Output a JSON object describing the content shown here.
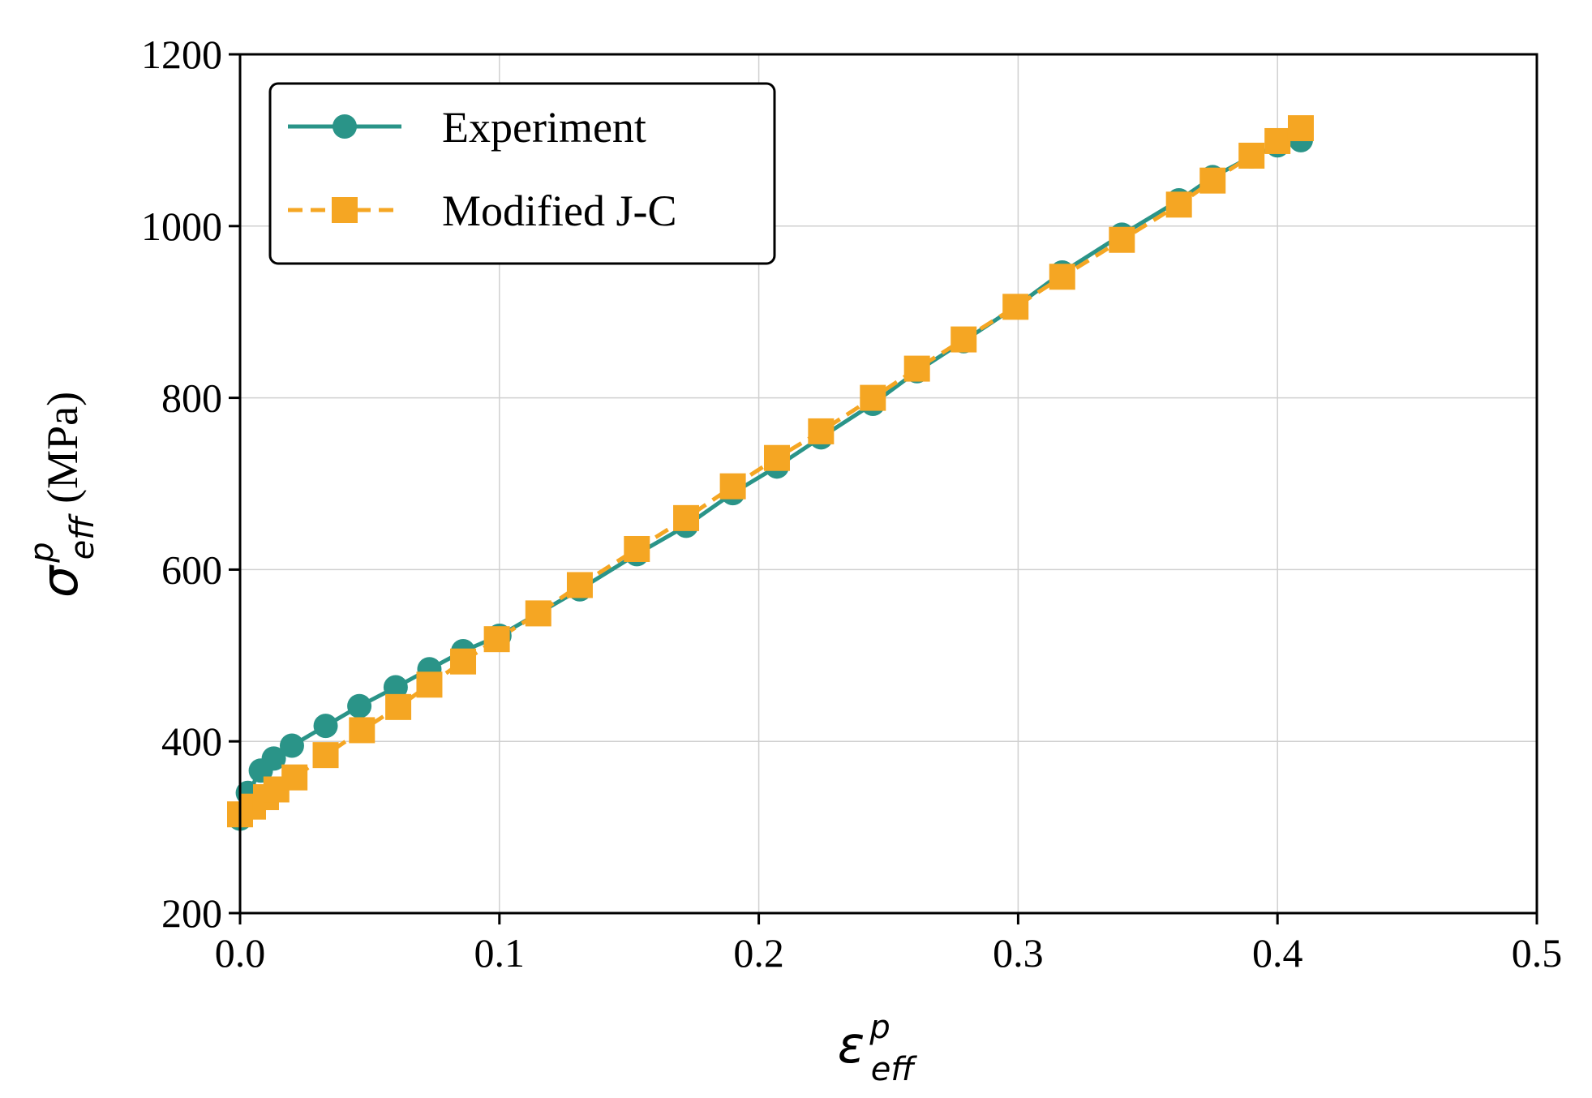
{
  "chart_data": {
    "type": "line",
    "title": "",
    "xlabel": "ε_eff^p",
    "ylabel": "σ_eff^p (MPa)",
    "axis_labels": {
      "x_symbol": "ε",
      "x_superscript": "p",
      "x_subscript": "eff",
      "y_symbol": "σ",
      "y_superscript": "p",
      "y_subscript": "eff",
      "y_unit": "(MPa)"
    },
    "xlim": [
      0.0,
      0.5
    ],
    "ylim": [
      200,
      1200
    ],
    "xticks": [
      0.0,
      0.1,
      0.2,
      0.3,
      0.4,
      0.5
    ],
    "xtick_labels": [
      "0.0",
      "0.1",
      "0.2",
      "0.3",
      "0.4",
      "0.5"
    ],
    "yticks": [
      200,
      400,
      600,
      800,
      1000,
      1200
    ],
    "ytick_labels": [
      "200",
      "400",
      "600",
      "800",
      "1000",
      "1200"
    ],
    "grid": true,
    "legend_position": "top-left",
    "series": [
      {
        "name": "Experiment",
        "color": "#2a9488",
        "line": "solid",
        "marker": "circle",
        "x": [
          0.0,
          0.003,
          0.008,
          0.013,
          0.02,
          0.033,
          0.046,
          0.06,
          0.073,
          0.086,
          0.1,
          0.115,
          0.131,
          0.153,
          0.172,
          0.19,
          0.207,
          0.224,
          0.244,
          0.261,
          0.279,
          0.299,
          0.317,
          0.34,
          0.362,
          0.375,
          0.39,
          0.4,
          0.409
        ],
        "y": [
          310,
          340,
          366,
          380,
          395,
          418,
          441,
          463,
          484,
          505,
          523,
          549,
          577,
          618,
          651,
          689,
          720,
          754,
          793,
          831,
          866,
          906,
          946,
          990,
          1030,
          1057,
          1081,
          1094,
          1100
        ]
      },
      {
        "name": "Modified J-C",
        "color": "#f5a623",
        "line": "dashed",
        "marker": "square",
        "x": [
          0.0,
          0.005,
          0.01,
          0.014,
          0.021,
          0.033,
          0.047,
          0.061,
          0.073,
          0.086,
          0.099,
          0.115,
          0.131,
          0.153,
          0.172,
          0.19,
          0.207,
          0.224,
          0.244,
          0.261,
          0.279,
          0.299,
          0.317,
          0.34,
          0.362,
          0.375,
          0.39,
          0.4,
          0.409
        ],
        "y": [
          315,
          324,
          335,
          344,
          358,
          384,
          413,
          440,
          466,
          493,
          519,
          549,
          582,
          624,
          660,
          697,
          730,
          761,
          800,
          834,
          868,
          906,
          941,
          984,
          1025,
          1053,
          1082,
          1099,
          1114
        ]
      }
    ]
  }
}
